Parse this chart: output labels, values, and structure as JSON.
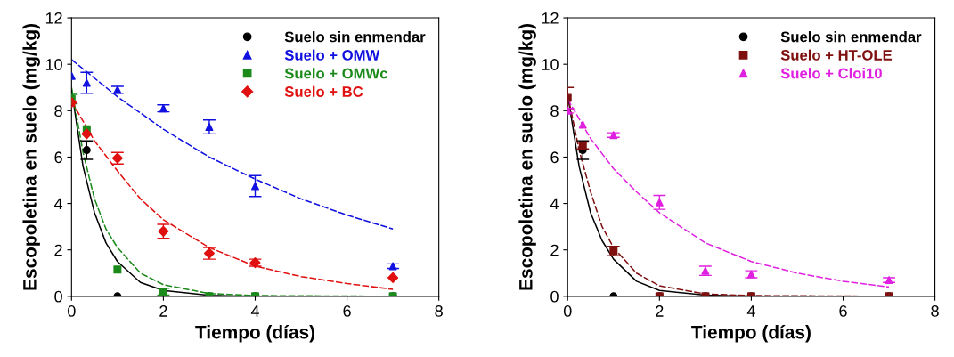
{
  "chart_data": [
    {
      "type": "scatter",
      "xlabel": "Tiempo (días)",
      "ylabel": "Escopoletina en suelo (mg/kg)",
      "xlim": [
        0,
        8
      ],
      "ylim": [
        0,
        12
      ],
      "xticks": [
        0,
        2,
        4,
        6,
        8
      ],
      "yticks": [
        0,
        2,
        4,
        6,
        8,
        10,
        12
      ],
      "grid": false,
      "legend": "top right",
      "x": [
        0,
        0.33,
        1,
        2,
        3,
        4,
        7
      ],
      "series": [
        {
          "name": "Suelo sin enmendar",
          "color": "#000000",
          "marker": "circle",
          "values": [
            null,
            6.3,
            0,
            0,
            0,
            0,
            0
          ],
          "errors": [
            null,
            0.4,
            null,
            null,
            null,
            null,
            null
          ]
        },
        {
          "name": "Suelo + OMW",
          "color": "#1010e0",
          "marker": "triangle",
          "values": [
            9.5,
            9.2,
            8.9,
            8.1,
            7.3,
            4.75,
            1.3
          ],
          "errors": [
            null,
            0.45,
            0.15,
            0.15,
            0.3,
            0.45,
            0.1
          ]
        },
        {
          "name": "Suelo + OMWc",
          "color": "#1a8a1a",
          "marker": "square",
          "values": [
            8.5,
            7.2,
            1.15,
            0.2,
            0,
            0,
            0
          ],
          "errors": [
            0.2,
            null,
            null,
            0.15,
            null,
            null,
            null
          ]
        },
        {
          "name": "Suelo + BC",
          "color": "#e01010",
          "marker": "diamond",
          "values": [
            8.35,
            7.0,
            5.95,
            2.8,
            1.85,
            1.45,
            0.8
          ],
          "errors": [
            null,
            null,
            0.25,
            0.3,
            0.25,
            0.15,
            null
          ]
        },
        {
          "type": "line",
          "color": "#000000",
          "line_style": "solid",
          "x": [
            0,
            0.25,
            0.5,
            0.75,
            1,
            1.5,
            2,
            3,
            4,
            7
          ],
          "values": [
            8.9,
            5.6,
            3.6,
            2.3,
            1.5,
            0.6,
            0.25,
            0.04,
            0,
            0
          ]
        },
        {
          "type": "line",
          "color": "#1a8a1a",
          "line_style": "dashed",
          "x": [
            0,
            0.25,
            0.5,
            0.75,
            1,
            1.5,
            2,
            3,
            4,
            7
          ],
          "values": [
            9.0,
            6.2,
            4.2,
            2.9,
            2.1,
            1.0,
            0.5,
            0.12,
            0.03,
            0
          ]
        },
        {
          "type": "line",
          "color": "#1010e0",
          "line_style": "dashed",
          "x": [
            0,
            1,
            2,
            3,
            4,
            5,
            6,
            7
          ],
          "values": [
            10.2,
            8.6,
            7.2,
            6.0,
            5.05,
            4.2,
            3.5,
            2.9
          ]
        },
        {
          "type": "line",
          "color": "#e01010",
          "line_style": "dashed",
          "x": [
            0,
            0.5,
            1,
            1.5,
            2,
            3,
            4,
            5,
            6,
            7
          ],
          "values": [
            8.4,
            6.7,
            5.4,
            4.2,
            3.3,
            2.1,
            1.3,
            0.85,
            0.55,
            0.3
          ]
        }
      ]
    },
    {
      "type": "scatter",
      "xlabel": "Tiempo (días)",
      "ylabel": "Escopoletina en suelo (mg/kg)",
      "xlim": [
        0,
        8
      ],
      "ylim": [
        0,
        12
      ],
      "xticks": [
        0,
        2,
        4,
        6,
        8
      ],
      "yticks": [
        0,
        2,
        4,
        6,
        8,
        10,
        12
      ],
      "grid": false,
      "legend": "top right",
      "x": [
        0,
        0.33,
        1,
        2,
        3,
        4,
        7
      ],
      "series": [
        {
          "name": "Suelo sin enmendar",
          "color": "#000000",
          "marker": "circle",
          "values": [
            null,
            6.3,
            0,
            0,
            0,
            0,
            0
          ],
          "errors": [
            null,
            0.4,
            null,
            null,
            null,
            null,
            null
          ]
        },
        {
          "name": "Suelo + HT-OLE",
          "color": "#7f1010",
          "marker": "square",
          "values": [
            8.55,
            6.5,
            1.95,
            0,
            0,
            0,
            0
          ],
          "errors": [
            0.45,
            0.15,
            0.2,
            null,
            null,
            null,
            null
          ]
        },
        {
          "name": "Suelo + Cloi10",
          "color": "#e020e0",
          "marker": "triangle",
          "values": [
            8.0,
            7.4,
            6.95,
            4.05,
            1.1,
            0.95,
            0.7
          ],
          "errors": [
            0.1,
            null,
            0.1,
            0.3,
            0.2,
            0.15,
            0.1
          ]
        },
        {
          "type": "line",
          "color": "#000000",
          "line_style": "solid",
          "x": [
            0,
            0.25,
            0.5,
            0.75,
            1,
            1.5,
            2,
            3,
            4,
            7
          ],
          "values": [
            8.7,
            5.6,
            3.6,
            2.4,
            1.6,
            0.65,
            0.25,
            0.05,
            0,
            0
          ]
        },
        {
          "type": "line",
          "color": "#7f1010",
          "line_style": "dashed",
          "x": [
            0,
            0.25,
            0.5,
            0.75,
            1,
            1.5,
            2,
            3,
            4,
            7
          ],
          "values": [
            8.7,
            6.3,
            4.5,
            3.0,
            2.1,
            1.0,
            0.45,
            0.1,
            0.03,
            0
          ]
        },
        {
          "type": "line",
          "color": "#e020e0",
          "line_style": "dashed",
          "x": [
            0,
            0.5,
            1,
            1.5,
            2,
            3,
            4,
            5,
            6,
            7
          ],
          "values": [
            8.5,
            6.8,
            5.5,
            4.5,
            3.6,
            2.3,
            1.5,
            1.0,
            0.65,
            0.4
          ]
        }
      ]
    }
  ]
}
